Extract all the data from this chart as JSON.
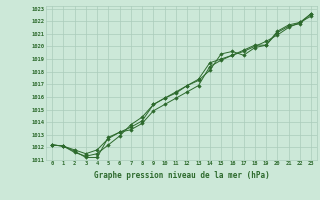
{
  "title": "Graphe pression niveau de la mer (hPa)",
  "background_color": "#cce8d8",
  "grid_color": "#aaccbb",
  "line_color": "#2d6a2d",
  "marker_color": "#2d6a2d",
  "xlim": [
    -0.5,
    23.5
  ],
  "ylim": [
    1011.0,
    1023.2
  ],
  "xticks": [
    0,
    1,
    2,
    3,
    4,
    5,
    6,
    7,
    8,
    9,
    10,
    11,
    12,
    13,
    14,
    15,
    16,
    17,
    18,
    19,
    20,
    21,
    22,
    23
  ],
  "yticks": [
    1011,
    1012,
    1013,
    1014,
    1015,
    1016,
    1017,
    1018,
    1019,
    1020,
    1021,
    1022,
    1023
  ],
  "series": [
    [
      1012.2,
      1012.1,
      1011.7,
      1011.2,
      1011.2,
      1012.8,
      1013.2,
      1013.6,
      1014.1,
      1015.4,
      1015.9,
      1016.3,
      1016.9,
      1017.3,
      1018.1,
      1019.4,
      1019.6,
      1019.3,
      1019.9,
      1020.1,
      1021.1,
      1021.6,
      1021.8,
      1022.6
    ],
    [
      1012.2,
      1012.1,
      1011.6,
      1011.3,
      1011.5,
      1012.2,
      1012.9,
      1013.8,
      1014.4,
      1015.4,
      1015.9,
      1016.4,
      1016.9,
      1017.4,
      1018.7,
      1019.0,
      1019.3,
      1019.7,
      1020.1,
      1020.1,
      1021.2,
      1021.7,
      1021.9,
      1022.6
    ],
    [
      1012.2,
      1012.1,
      1011.8,
      1011.5,
      1011.8,
      1012.7,
      1013.2,
      1013.4,
      1013.9,
      1014.9,
      1015.4,
      1015.9,
      1016.4,
      1016.9,
      1018.4,
      1018.9,
      1019.3,
      1019.6,
      1020.0,
      1020.4,
      1020.9,
      1021.5,
      1021.9,
      1022.4
    ]
  ]
}
